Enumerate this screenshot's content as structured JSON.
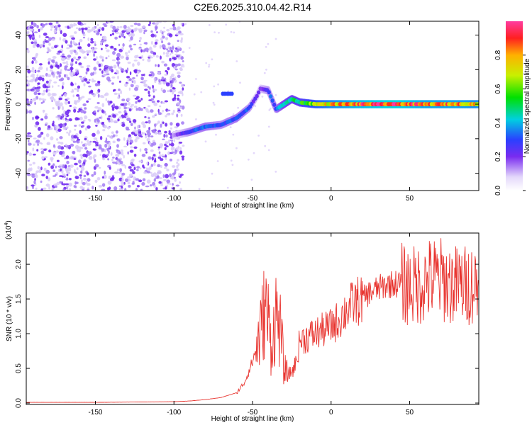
{
  "title": "C2E6.2025.310.04.42.R14",
  "colors": {
    "snr_line": "#e8332e",
    "spec_low": "#cbb7f2",
    "spec_mid": "#7a2cf0",
    "background": "#ffffff"
  },
  "chart_data": [
    {
      "type": "heatmap",
      "title": "C2E6.2025.310.04.42.R14",
      "xlabel": "Height of straight line (km)",
      "ylabel": "Frequency (Hz)",
      "xlim": [
        -194,
        94
      ],
      "ylim": [
        -50,
        48
      ],
      "xticks": [
        -150,
        -100,
        -50,
        0,
        50
      ],
      "xtick_labels": [
        "-150",
        "-100",
        "-50",
        "0",
        "50"
      ],
      "yticks": [
        -40,
        -20,
        0,
        20,
        40
      ],
      "ytick_labels": [
        "-40",
        "-20",
        "0",
        "20",
        "40"
      ],
      "colorbar": {
        "label": "Normalized spectral amplitude",
        "range": [
          0.0,
          1.0
        ],
        "ticks": [
          0.0,
          0.2,
          0.4,
          0.6,
          0.8
        ],
        "tick_labels": [
          "0.0",
          "0.2",
          "0.4",
          "0.6",
          "0.8"
        ]
      },
      "noise_region_x": [
        -194,
        -94
      ],
      "ridge_x": [
        -100,
        -90,
        -80,
        -70,
        -60,
        -52,
        -47,
        -45,
        -40,
        -35,
        -30,
        -25,
        -20,
        -10,
        0,
        10,
        20,
        30,
        40,
        50,
        60,
        70,
        80,
        94
      ],
      "ridge_freq": [
        -18,
        -16,
        -13,
        -12,
        -8,
        -2,
        5,
        9,
        8,
        -3,
        0,
        3,
        1,
        0,
        0,
        0,
        0,
        0,
        0,
        0,
        0,
        0,
        0,
        0
      ],
      "ridge_amplitude": [
        0.15,
        0.3,
        0.35,
        0.3,
        0.35,
        0.3,
        0.2,
        0.2,
        0.3,
        0.35,
        0.45,
        0.5,
        0.55,
        0.7,
        0.8,
        0.85,
        0.9,
        0.92,
        0.95,
        0.9,
        0.85,
        0.85,
        0.85,
        0.8
      ]
    },
    {
      "type": "line",
      "xlabel": "Height of straight line (km)",
      "ylabel": "SNR (10 * v/v)",
      "y_scale_label": "(x10",
      "y_scale_exp": "4",
      "xlim": [
        -194,
        94
      ],
      "ylim": [
        -0.02,
        2.45
      ],
      "xticks": [
        -150,
        -100,
        -50,
        0,
        50
      ],
      "xtick_labels": [
        "-150",
        "-100",
        "-50",
        "0",
        "50"
      ],
      "yticks": [
        0.0,
        0.5,
        1.0,
        1.5,
        2.0
      ],
      "ytick_labels": [
        "0.0",
        "0.5",
        "1.0",
        "1.5",
        "2.0"
      ],
      "series": [
        {
          "name": "SNR",
          "x": [
            -194,
            -150,
            -100,
            -90,
            -80,
            -70,
            -60,
            -55,
            -50,
            -45,
            -42,
            -40,
            -38,
            -35,
            -32,
            -30,
            -28,
            -25,
            -22,
            -20,
            -15,
            -10,
            -5,
            0,
            5,
            10,
            15,
            20,
            25,
            30,
            35,
            40,
            45,
            50,
            55,
            60,
            65,
            70,
            75,
            80,
            85,
            90,
            94
          ],
          "values": [
            0.01,
            0.01,
            0.02,
            0.03,
            0.05,
            0.08,
            0.15,
            0.3,
            0.6,
            1.0,
            1.4,
            1.2,
            0.8,
            1.3,
            1.0,
            0.5,
            0.4,
            0.45,
            0.6,
            0.9,
            0.95,
            1.0,
            1.05,
            1.1,
            1.2,
            1.35,
            1.45,
            1.5,
            1.6,
            1.65,
            1.7,
            1.72,
            1.72,
            1.68,
            1.7,
            1.75,
            1.8,
            1.78,
            1.72,
            1.7,
            1.7,
            1.72,
            1.7
          ]
        }
      ]
    }
  ]
}
